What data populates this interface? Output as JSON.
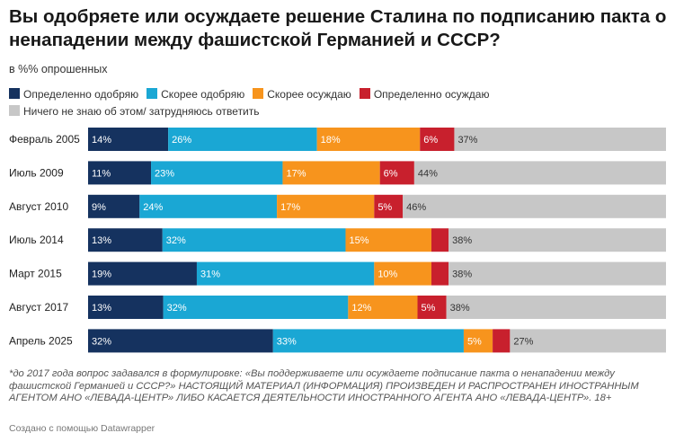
{
  "title": "Вы одобряете или осуждаете решение Сталина по подписанию пакта о ненападении между фашистской Германией и СССР?",
  "subtitle": "в %% опрошенных",
  "legend": [
    {
      "label": "Определенно одобряю",
      "color": "#15325f"
    },
    {
      "label": "Скорее одобряю",
      "color": "#1aa7d4"
    },
    {
      "label": "Скорее осуждаю",
      "color": "#f7941d"
    },
    {
      "label": "Определенно осуждаю",
      "color": "#c8202d"
    },
    {
      "label": "Ничего не знаю об этом/ затрудняюсь ответить",
      "color": "#c7c7c7"
    }
  ],
  "chart_data": {
    "type": "bar",
    "orientation": "horizontal",
    "stacked": true,
    "categories": [
      "Февраль 2005",
      "Июль 2009",
      "Август 2010",
      "Июль 2014",
      "Март 2015",
      "Август 2017",
      "Апрель 2025"
    ],
    "series": [
      {
        "name": "Определенно одобряю",
        "color": "#15325f",
        "values": [
          14,
          11,
          9,
          13,
          19,
          13,
          32
        ],
        "labels": [
          "14%",
          "11%",
          "9%",
          "13%",
          "19%",
          "13%",
          "32%"
        ]
      },
      {
        "name": "Скорее одобряю",
        "color": "#1aa7d4",
        "values": [
          26,
          23,
          24,
          32,
          31,
          32,
          33
        ],
        "labels": [
          "26%",
          "23%",
          "24%",
          "32%",
          "31%",
          "32%",
          "33%"
        ]
      },
      {
        "name": "Скорее осуждаю",
        "color": "#f7941d",
        "values": [
          18,
          17,
          17,
          15,
          10,
          12,
          5
        ],
        "labels": [
          "18%",
          "17%",
          "17%",
          "15%",
          "10%",
          "12%",
          "5%"
        ]
      },
      {
        "name": "Определенно осуждаю",
        "color": "#c8202d",
        "values": [
          6,
          6,
          5,
          3,
          3,
          5,
          3
        ],
        "labels": [
          "6%",
          "6%",
          "5%",
          "",
          "",
          "5%",
          ""
        ]
      },
      {
        "name": "Ничего не знаю об этом/ затрудняюсь ответить",
        "color": "#c7c7c7",
        "values": [
          37,
          44,
          46,
          38,
          38,
          38,
          27
        ],
        "labels": [
          "37%",
          "44%",
          "46%",
          "38%",
          "38%",
          "38%",
          "27%"
        ]
      }
    ]
  },
  "footnote": "*до 2017 года вопрос задавался в формулировке: «Вы поддерживаете или осуждаете подписание пакта о ненападении между фашистской Германией и СССР?» НАСТОЯЩИЙ МАТЕРИАЛ (ИНФОРМАЦИЯ) ПРОИЗВЕДЕН И РАСПРОСТРАНЕН ИНОСТРАННЫМ АГЕНТОМ АНО «ЛЕВАДА-ЦЕНТР» ЛИБО КАСАЕТСЯ ДЕЯТЕЛЬНОСТИ ИНОСТРАННОГО АГЕНТА АНО «ЛЕВАДА-ЦЕНТР». 18+",
  "credit": "Создано с помощью Datawrapper"
}
